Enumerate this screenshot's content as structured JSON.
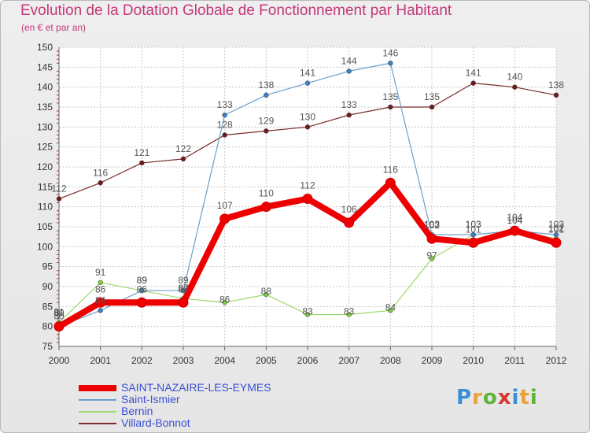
{
  "header": {
    "title": "Evolution de la Dotation Globale de Fonctionnement par Habitant",
    "subtitle": "(en € et par an)"
  },
  "logo": {
    "text": "Proxiti",
    "colors": [
      "#3b8fd6",
      "#e8a23a",
      "#5fb33a",
      "#d8352f",
      "#3b8fd6",
      "#e8a23a",
      "#5fb33a"
    ]
  },
  "colors": {
    "axis_text": "#333333",
    "grid": "#c8c8c8",
    "point_label": "#555555",
    "title": "#c5377a",
    "legend_text": "#3a4fd6"
  },
  "chart_data": {
    "type": "line",
    "title": "Evolution de la Dotation Globale de Fonctionnement par Habitant",
    "subtitle": "(en € et par an)",
    "xlabel": "",
    "ylabel": "",
    "x": [
      "2000",
      "2001",
      "2002",
      "2003",
      "2004",
      "2005",
      "2006",
      "2007",
      "2008",
      "2009",
      "2010",
      "2011",
      "2012"
    ],
    "ylim": [
      75,
      150
    ],
    "yticks": [
      75,
      80,
      85,
      90,
      95,
      100,
      105,
      110,
      115,
      120,
      125,
      130,
      135,
      140,
      145,
      150
    ],
    "grid": true,
    "legend_position": "bottom-left",
    "series": [
      {
        "name": "SAINT-NAZAIRE-LES-EYMES",
        "color": "#ee0000",
        "marker_color": "#ee0000",
        "width": 8,
        "marker": 6,
        "values": [
          80,
          86,
          86,
          86,
          107,
          110,
          112,
          106,
          116,
          102,
          101,
          104,
          101
        ]
      },
      {
        "name": "Saint-Ismier",
        "color": "#6a9fcc",
        "marker_color": "#3d7fc0",
        "width": 1.2,
        "marker": 3,
        "values": [
          80,
          84,
          89,
          89,
          133,
          138,
          141,
          144,
          146,
          103,
          103,
          104,
          103
        ]
      },
      {
        "name": "Bernin",
        "color": "#9dd86a",
        "marker_color": "#7ccb3d",
        "width": 1.2,
        "marker": 3,
        "values": [
          81,
          91,
          89,
          87,
          86,
          88,
          83,
          83,
          84,
          97,
          103,
          104,
          102
        ]
      },
      {
        "name": "Villard-Bonnot",
        "color": "#7a2c2c",
        "marker_color": "#6b1d1d",
        "width": 1.2,
        "marker": 3,
        "values": [
          112,
          116,
          121,
          122,
          128,
          129,
          130,
          133,
          135,
          135,
          141,
          140,
          138
        ]
      }
    ]
  }
}
